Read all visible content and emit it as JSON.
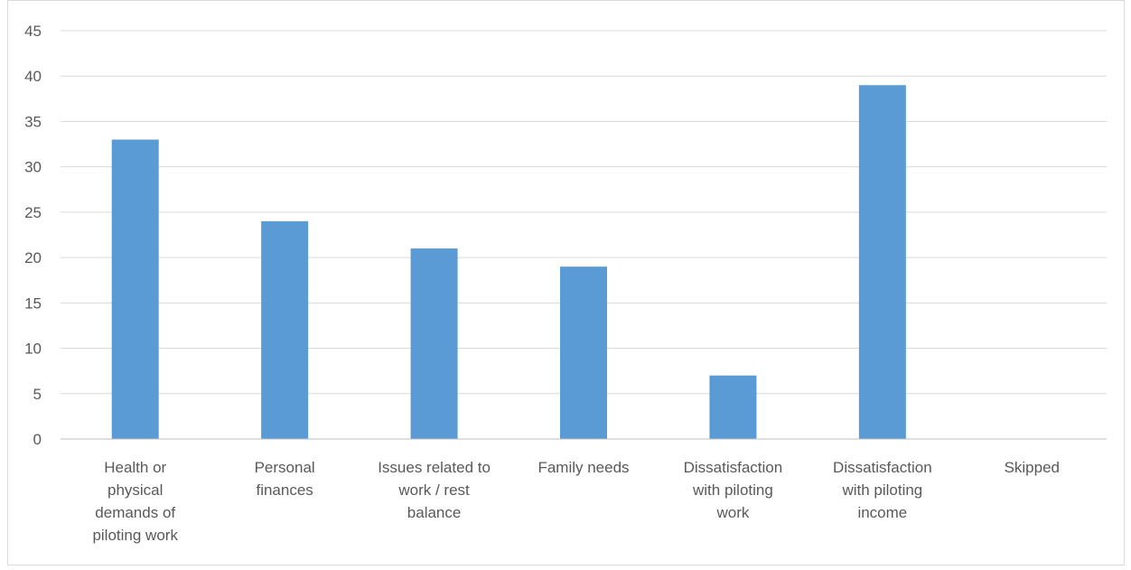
{
  "chart_data": {
    "type": "bar",
    "title": "",
    "xlabel": "",
    "ylabel": "",
    "categories": [
      "Health or physical demands of piloting work",
      "Personal finances",
      "Issues related to work / rest balance",
      "Family needs",
      "Dissatisfaction with piloting work",
      "Dissatisfaction with piloting income",
      "Skipped"
    ],
    "category_label_lines": [
      [
        "Health or",
        "physical",
        "demands of",
        "piloting work"
      ],
      [
        "Personal",
        "finances"
      ],
      [
        "Issues related to",
        "work / rest",
        "balance"
      ],
      [
        "Family needs"
      ],
      [
        "Dissatisfaction",
        "with piloting",
        "work"
      ],
      [
        "Dissatisfaction",
        "with piloting",
        "income"
      ],
      [
        "Skipped"
      ]
    ],
    "values": [
      33,
      24,
      21,
      19,
      7,
      39,
      0
    ],
    "ylim": [
      0,
      45
    ],
    "yticks": [
      0,
      5,
      10,
      15,
      20,
      25,
      30,
      35,
      40,
      45
    ],
    "grid": true,
    "legend": "none",
    "colors": {
      "bar": "#5b9bd5",
      "grid": "#d9d9d9",
      "axis": "#bfbfbf",
      "text": "#595959"
    }
  }
}
